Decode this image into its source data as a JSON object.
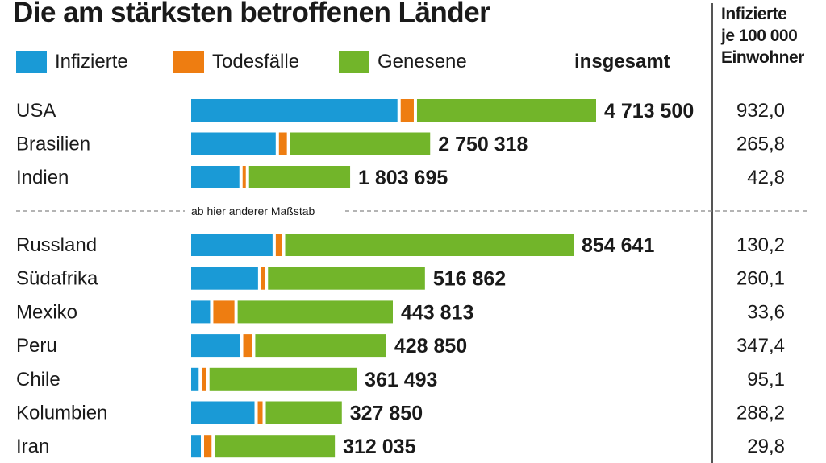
{
  "title": "Die am stärksten betroffenen Länder",
  "legend": {
    "infected": "Infizierte",
    "deaths": "Todesfälle",
    "recovered": "Genesene"
  },
  "total_header": "insgesamt",
  "per100k_header": [
    "Infizierte",
    "je 100 000",
    "Einwohner"
  ],
  "scale_note": "ab hier anderer Maßstab",
  "colors": {
    "infected": "#1a9ad6",
    "deaths": "#ee7d11",
    "recovered": "#72b52a",
    "text": "#1a1a1a",
    "divider": "#555555"
  },
  "chart_data": {
    "type": "bar",
    "stacked": true,
    "orientation": "horizontal",
    "title": "Die am stärksten betroffenen Länder",
    "series_names": [
      "Infizierte",
      "Todesfälle",
      "Genesene"
    ],
    "groups": [
      {
        "rows": [
          {
            "country": "USA",
            "infected": 2440000,
            "deaths": 155000,
            "recovered": 2118500,
            "total": 4713500,
            "total_label": "4 713 500",
            "per100k": "932,0"
          },
          {
            "country": "Brasilien",
            "infected": 1000000,
            "deaths": 94000,
            "recovered": 1656318,
            "total": 2750318,
            "total_label": "2 750 318",
            "per100k": "265,8"
          },
          {
            "country": "Indien",
            "infected": 570000,
            "deaths": 38000,
            "recovered": 1195695,
            "total": 1803695,
            "total_label": "1 803 695",
            "per100k": "42,8"
          }
        ]
      },
      {
        "note": "ab hier anderer Maßstab",
        "rows": [
          {
            "country": "Russland",
            "infected": 185000,
            "deaths": 14000,
            "recovered": 655641,
            "total": 854641,
            "total_label": "854 641",
            "per100k": "130,2"
          },
          {
            "country": "Südafrika",
            "infected": 152000,
            "deaths": 8000,
            "recovered": 356862,
            "total": 516862,
            "total_label": "516 862",
            "per100k": "260,1"
          },
          {
            "country": "Mexiko",
            "infected": 43000,
            "deaths": 48000,
            "recovered": 352813,
            "total": 443813,
            "total_label": "443 813",
            "per100k": "33,6"
          },
          {
            "country": "Peru",
            "infected": 111000,
            "deaths": 20000,
            "recovered": 297850,
            "total": 428850,
            "total_label": "428 850",
            "per100k": "347,4"
          },
          {
            "country": "Chile",
            "infected": 17000,
            "deaths": 10000,
            "recovered": 334493,
            "total": 361493,
            "total_label": "361 493",
            "per100k": "95,1"
          },
          {
            "country": "Kolumbien",
            "infected": 144000,
            "deaths": 11000,
            "recovered": 172850,
            "total": 327850,
            "total_label": "327 850",
            "per100k": "288,2"
          },
          {
            "country": "Iran",
            "infected": 22000,
            "deaths": 17000,
            "recovered": 273035,
            "total": 312035,
            "total_label": "312 035",
            "per100k": "29,8"
          }
        ]
      }
    ]
  }
}
